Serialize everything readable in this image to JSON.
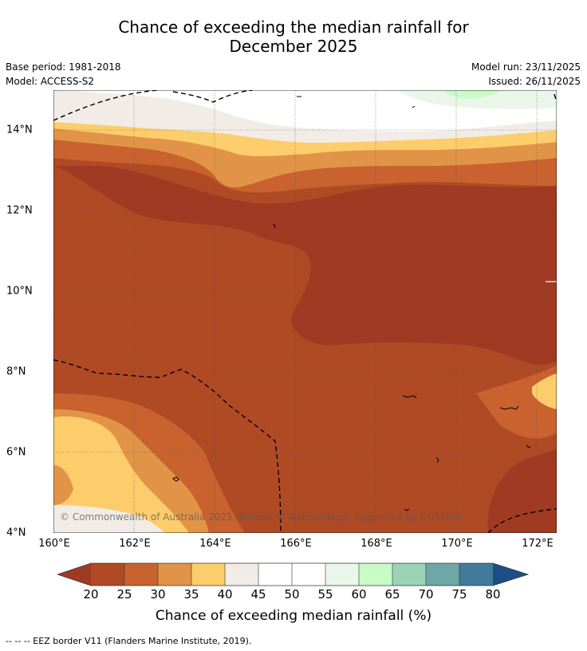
{
  "title": {
    "line1": "Chance of exceeding the median rainfall for",
    "line2": "December 2025"
  },
  "meta": {
    "base_period": "Base period: 1981-2018",
    "model": "Model: ACCESS-S2",
    "model_run": "Model run: 23/11/2025",
    "issued": "Issued: 26/11/2025"
  },
  "map": {
    "lon_ticks": [
      "160°E",
      "162°E",
      "164°E",
      "166°E",
      "168°E",
      "170°E",
      "172°E"
    ],
    "lat_ticks": [
      "14°N",
      "12°N",
      "10°N",
      "8°N",
      "6°N",
      "4°N"
    ],
    "copyright": "© Commonwealth of Australia 2025, Bureau of Meteorology, supported by COSPPac"
  },
  "colorbar": {
    "labels": [
      "20",
      "25",
      "30",
      "35",
      "40",
      "45",
      "50",
      "55",
      "60",
      "65",
      "70",
      "75",
      "80"
    ],
    "colors": {
      "below20": "#a13a22",
      "c20_25": "#b04a24",
      "c25_30": "#c9622f",
      "c30_35": "#e19447",
      "c35_40": "#fdcc6b",
      "c40_45": "#f1ece6",
      "c45_50": "#ffffff",
      "c50_55": "#ffffff",
      "c55_60": "#eaf6e9",
      "c60_65": "#c8fbc6",
      "c65_70": "#9bd3b6",
      "c70_75": "#6fa6a6",
      "c75_80": "#427b99",
      "above80": "#1b4f86"
    },
    "title": "Chance of exceeding median rainfall (%)"
  },
  "footer": "--  --  -- EEZ border V11 (Flanders Marine Institute, 2019)."
}
